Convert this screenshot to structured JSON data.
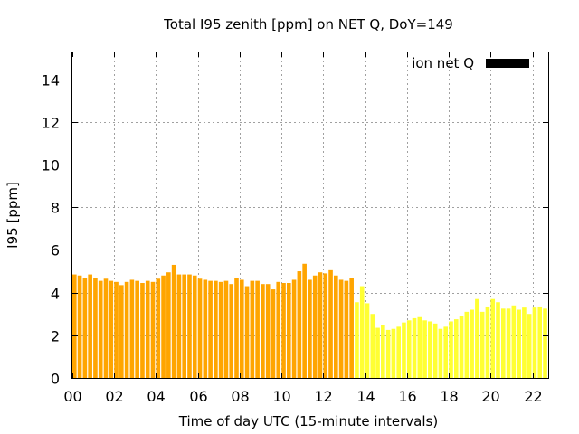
{
  "chart_data": {
    "type": "bar",
    "title": "Total I95 zenith [ppm] on NET Q, DoY=149",
    "xlabel": "Time of day UTC (15-minute intervals)",
    "ylabel": "I95 [ppm]",
    "xlim": [
      0,
      22.75
    ],
    "ylim": [
      0,
      15.3
    ],
    "x_ticks": [
      "00",
      "02",
      "04",
      "06",
      "08",
      "10",
      "12",
      "14",
      "16",
      "18",
      "20",
      "22"
    ],
    "y_ticks": [
      "0",
      "2",
      "4",
      "6",
      "8",
      "10",
      "12",
      "14"
    ],
    "grid": true,
    "legend": {
      "position": "top-right",
      "entries": [
        {
          "label": "ion net Q",
          "color": "#000000"
        }
      ]
    },
    "bar_width_hours": 0.2,
    "series": [
      {
        "color": "#ffa500",
        "start_hour": 0.0,
        "step_hours": 0.25,
        "values": [
          4.85,
          4.8,
          4.7,
          4.85,
          4.7,
          4.55,
          4.65,
          4.55,
          4.5,
          4.35,
          4.5,
          4.6,
          4.55,
          4.45,
          4.55,
          4.5,
          4.65,
          4.8,
          4.95,
          5.3,
          4.85,
          4.85,
          4.85,
          4.8,
          4.65,
          4.6,
          4.55,
          4.55,
          4.5,
          4.55,
          4.4,
          4.7,
          4.6,
          4.3,
          4.55,
          4.55,
          4.4,
          4.4,
          4.15,
          4.5,
          4.45,
          4.45,
          4.6,
          5.0,
          5.35,
          4.6,
          4.8,
          4.95,
          4.9,
          5.05,
          4.8,
          4.6,
          4.55,
          4.7
        ]
      },
      {
        "color": "#ffff33",
        "start_hour": 13.5,
        "step_hours": 0.25,
        "values": [
          3.55,
          4.3,
          3.5,
          3.0,
          2.35,
          2.5,
          2.25,
          2.3,
          2.4,
          2.6,
          2.7,
          2.8,
          2.85,
          2.7,
          2.65,
          2.55,
          2.3,
          2.4,
          2.65,
          2.75,
          2.9,
          3.1,
          3.2,
          3.7,
          3.1,
          3.35,
          3.7,
          3.55,
          3.25,
          3.25,
          3.4,
          3.2,
          3.3,
          3.0,
          3.3,
          3.35,
          3.25,
          3.3
        ]
      }
    ]
  }
}
